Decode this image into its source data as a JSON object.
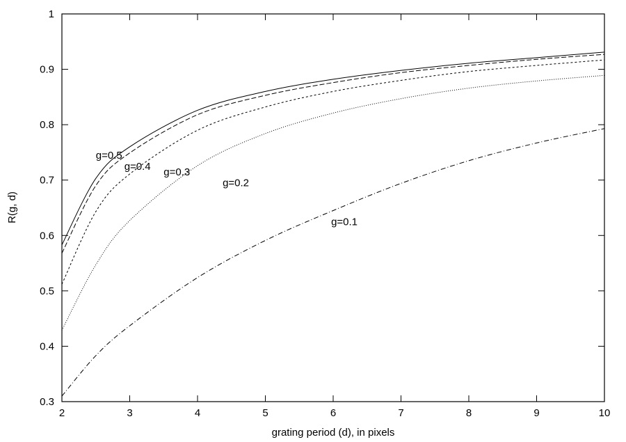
{
  "chart_data": {
    "type": "line",
    "title": "",
    "xlabel": "grating period (d), in pixels",
    "ylabel": "R(g, d)",
    "xlim": [
      2,
      10
    ],
    "ylim": [
      0.3,
      1
    ],
    "grid": false,
    "x_ticks": [
      "2",
      "3",
      "4",
      "5",
      "6",
      "7",
      "8",
      "9",
      "10"
    ],
    "y_ticks": [
      "0.3",
      "0.4",
      "0.5",
      "0.6",
      "0.7",
      "0.8",
      "0.9",
      "1"
    ],
    "x": [
      2,
      2.5,
      3,
      4,
      5,
      6,
      7,
      8,
      9,
      10
    ],
    "series": [
      {
        "name": "g=0.5",
        "dash": "solid",
        "values": [
          0.583,
          0.703,
          0.76,
          0.826,
          0.86,
          0.882,
          0.898,
          0.911,
          0.921,
          0.931
        ]
      },
      {
        "name": "g=0.4",
        "dash": "dashed",
        "values": [
          0.568,
          0.69,
          0.749,
          0.818,
          0.853,
          0.876,
          0.894,
          0.907,
          0.918,
          0.927
        ]
      },
      {
        "name": "g=0.3",
        "dash": "short-dashed",
        "values": [
          0.512,
          0.643,
          0.711,
          0.79,
          0.832,
          0.86,
          0.88,
          0.896,
          0.907,
          0.917
        ]
      },
      {
        "name": "g=0.2",
        "dash": "dotted",
        "values": [
          0.429,
          0.547,
          0.627,
          0.726,
          0.784,
          0.821,
          0.847,
          0.866,
          0.879,
          0.889
        ]
      },
      {
        "name": "g=0.1",
        "dash": "dash-dot",
        "values": [
          0.31,
          0.383,
          0.437,
          0.524,
          0.591,
          0.645,
          0.694,
          0.735,
          0.767,
          0.793
        ]
      }
    ],
    "annotations": [
      {
        "text": "g=0.5",
        "x": 2.5,
        "y": 0.745
      },
      {
        "text": "g=0.4",
        "x": 2.92,
        "y": 0.725
      },
      {
        "text": "g=0.3",
        "x": 3.5,
        "y": 0.715
      },
      {
        "text": "g=0.2",
        "x": 4.37,
        "y": 0.695
      },
      {
        "text": "g=0.1",
        "x": 5.97,
        "y": 0.625
      }
    ]
  }
}
